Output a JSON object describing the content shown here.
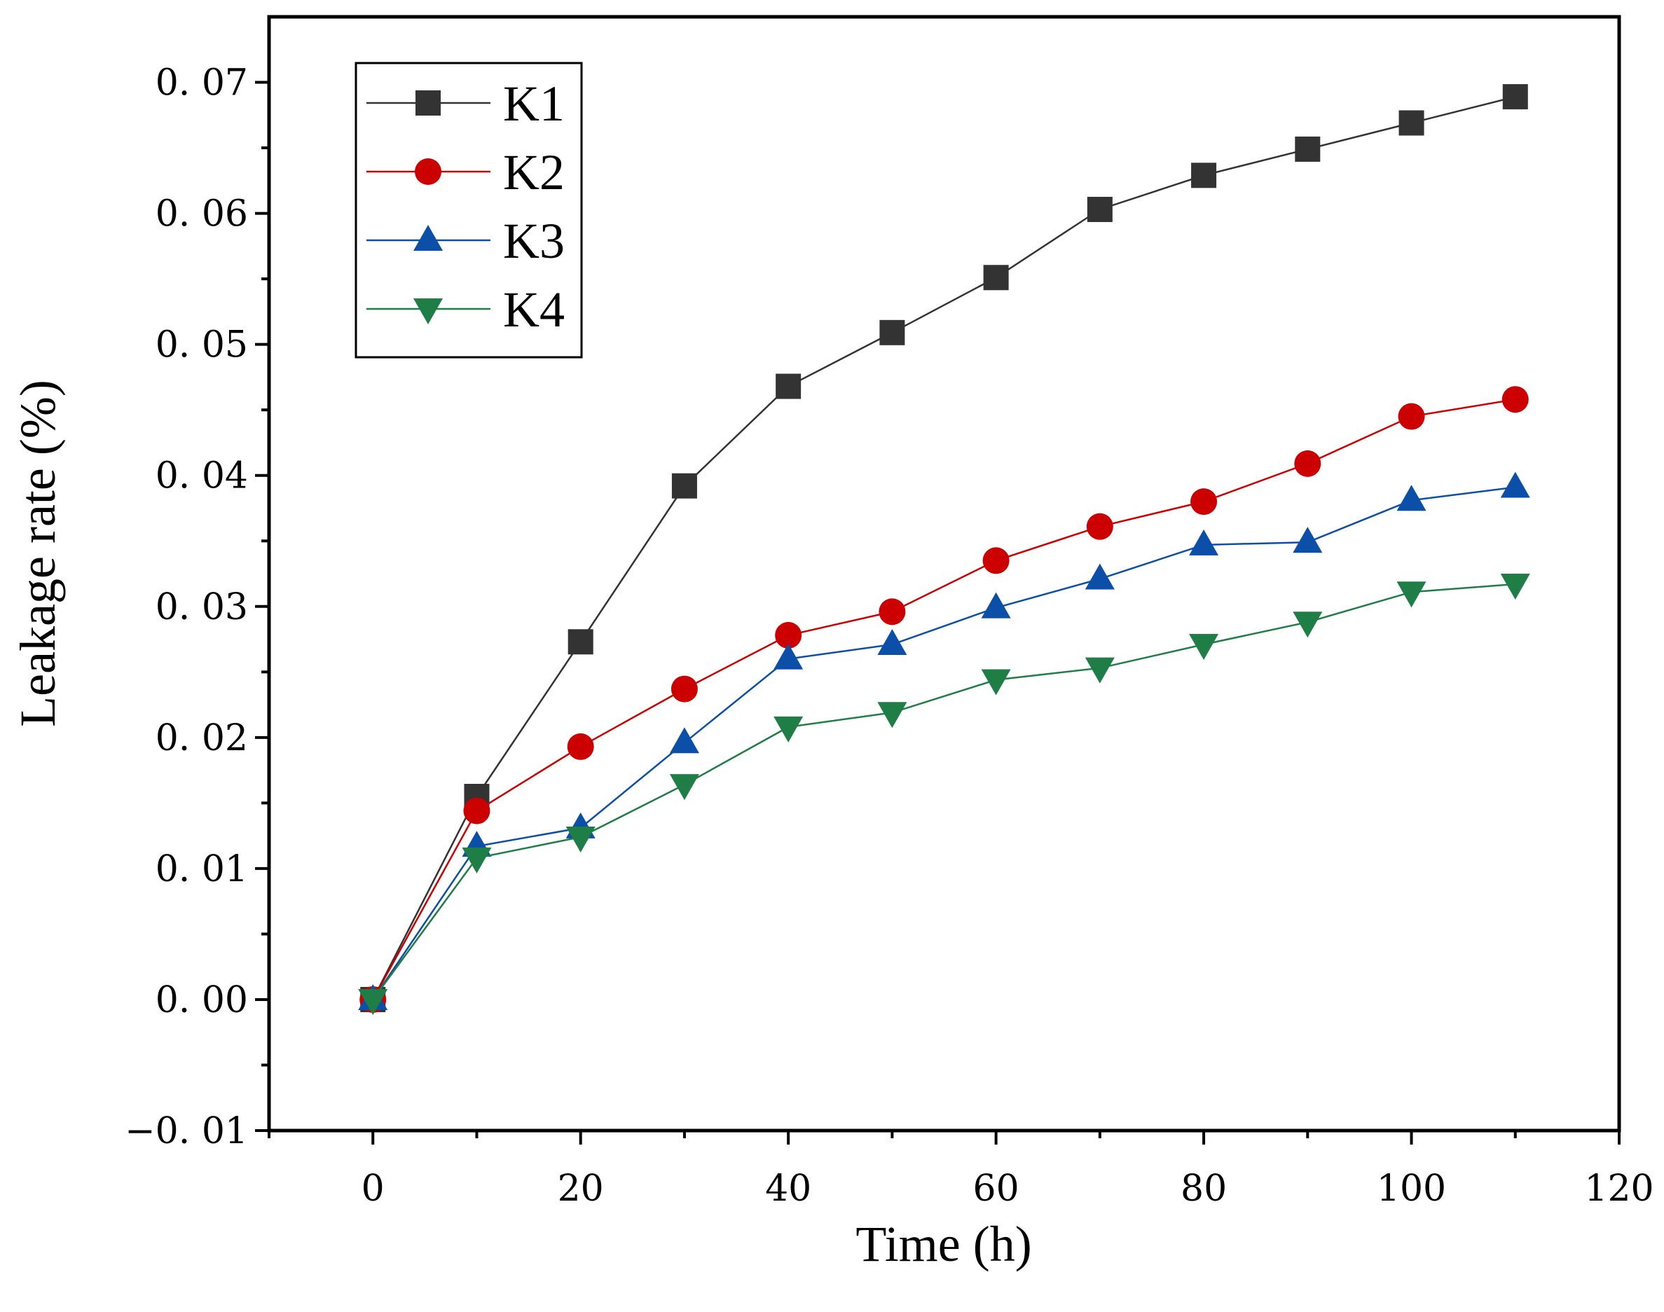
{
  "chart_data": {
    "type": "line",
    "title": "",
    "xlabel": "Time (h)",
    "ylabel": "Leakage rate (%)",
    "xlim": [
      -10,
      120
    ],
    "ylim": [
      -0.01,
      0.075
    ],
    "x_ticks": [
      0,
      20,
      40,
      60,
      80,
      100,
      120
    ],
    "x_tick_labels": [
      "0",
      "20",
      "40",
      "60",
      "80",
      "100",
      "120"
    ],
    "y_ticks": [
      -0.01,
      0.0,
      0.01,
      0.02,
      0.03,
      0.04,
      0.05,
      0.06,
      0.07
    ],
    "y_tick_labels": [
      "−0. 01",
      "0. 00",
      "0. 01",
      "0. 02",
      "0. 03",
      "0. 04",
      "0. 05",
      "0. 06",
      "0. 07"
    ],
    "grid": false,
    "legend_position": "top-left",
    "x": [
      0,
      10,
      20,
      30,
      40,
      50,
      60,
      70,
      80,
      90,
      100,
      110
    ],
    "series": [
      {
        "name": "K1",
        "color": "#333333",
        "marker": "square",
        "values": [
          0.0,
          0.0155,
          0.0273,
          0.0392,
          0.0468,
          0.0509,
          0.0551,
          0.0603,
          0.0629,
          0.0649,
          0.0669,
          0.0689
        ]
      },
      {
        "name": "K2",
        "color": "#cc0000",
        "marker": "circle",
        "values": [
          0.0,
          0.0144,
          0.0193,
          0.0237,
          0.0278,
          0.0296,
          0.0335,
          0.0361,
          0.038,
          0.0409,
          0.0445,
          0.0458
        ]
      },
      {
        "name": "K3",
        "color": "#0b4fa8",
        "marker": "triangle-up",
        "values": [
          0.0,
          0.0117,
          0.0131,
          0.0196,
          0.026,
          0.0271,
          0.0299,
          0.0321,
          0.0347,
          0.0349,
          0.0381,
          0.0391
        ]
      },
      {
        "name": "K4",
        "color": "#1f7d46",
        "marker": "triangle-down",
        "values": [
          0.0,
          0.0108,
          0.0124,
          0.0164,
          0.0208,
          0.0219,
          0.0244,
          0.0253,
          0.0271,
          0.0288,
          0.0311,
          0.0317
        ]
      }
    ]
  }
}
